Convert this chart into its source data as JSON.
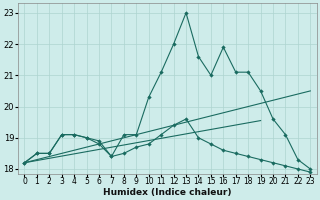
{
  "xlabel": "Humidex (Indice chaleur)",
  "bg_color": "#ceecea",
  "grid_color": "#aed4d0",
  "line_color": "#1a6b60",
  "xlim": [
    -0.5,
    23.5
  ],
  "ylim": [
    17.85,
    23.3
  ],
  "yticks": [
    18,
    19,
    20,
    21,
    22,
    23
  ],
  "xticks": [
    0,
    1,
    2,
    3,
    4,
    5,
    6,
    7,
    8,
    9,
    10,
    11,
    12,
    13,
    14,
    15,
    16,
    17,
    18,
    19,
    20,
    21,
    22,
    23
  ],
  "line1_x": [
    0,
    1,
    2,
    3,
    4,
    5,
    6,
    7,
    8,
    9,
    10,
    11,
    12,
    13,
    14,
    15,
    16,
    17,
    18,
    19,
    20,
    21,
    22,
    23
  ],
  "line1_y": [
    18.2,
    18.5,
    18.5,
    19.1,
    19.1,
    19.0,
    18.9,
    18.4,
    19.1,
    19.1,
    20.3,
    21.1,
    22.0,
    23.0,
    21.6,
    21.0,
    21.9,
    21.1,
    21.1,
    20.5,
    19.6,
    19.1,
    18.3,
    18.0
  ],
  "line2_x": [
    0,
    1,
    2,
    3,
    4,
    5,
    6,
    7,
    8,
    9,
    10,
    11,
    12,
    13,
    14,
    15,
    16,
    17,
    18,
    19,
    20,
    21,
    22,
    23
  ],
  "line2_y": [
    18.2,
    18.5,
    18.5,
    19.1,
    19.1,
    19.0,
    18.8,
    18.4,
    18.5,
    18.7,
    18.8,
    19.1,
    19.4,
    19.6,
    19.0,
    18.8,
    18.6,
    18.5,
    18.4,
    18.3,
    18.2,
    18.1,
    18.0,
    17.9
  ],
  "line3_x": [
    0,
    19
  ],
  "line3_y": [
    18.2,
    19.55
  ],
  "line4_x": [
    0,
    23
  ],
  "line4_y": [
    18.2,
    20.5
  ]
}
